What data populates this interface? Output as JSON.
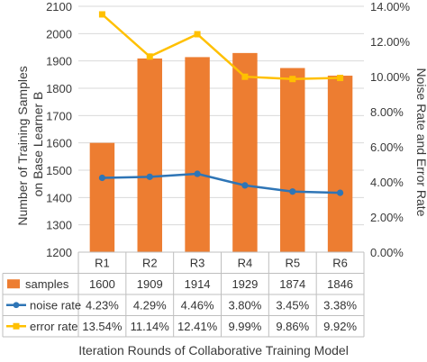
{
  "chart_data": {
    "type": "bar",
    "categories": [
      "R1",
      "R2",
      "R3",
      "R4",
      "R5",
      "R6"
    ],
    "series": [
      {
        "name": "samples",
        "kind": "bar",
        "axis": "left",
        "color": "#ED7D31",
        "values": [
          1600,
          1909,
          1914,
          1929,
          1874,
          1846
        ],
        "labels": [
          "1600",
          "1909",
          "1914",
          "1929",
          "1874",
          "1846"
        ]
      },
      {
        "name": "noise rate",
        "kind": "line",
        "axis": "right",
        "color": "#2E75B6",
        "values": [
          4.23,
          4.29,
          4.46,
          3.8,
          3.45,
          3.38
        ],
        "labels": [
          "4.23%",
          "4.29%",
          "4.46%",
          "3.80%",
          "3.45%",
          "3.38%"
        ]
      },
      {
        "name": "error rate",
        "kind": "line",
        "axis": "right",
        "color": "#FFC000",
        "values": [
          13.54,
          11.14,
          12.41,
          9.99,
          9.86,
          9.92
        ],
        "labels": [
          "13.54%",
          "11.14%",
          "12.41%",
          "9.99%",
          "9.86%",
          "9.92%"
        ]
      }
    ],
    "ylabel": [
      "Number of Training Samples",
      "on Base Learner B"
    ],
    "y2label": "Noise Rate and Error Rate",
    "xlabel": "Iteration Rounds of Collaborative Training Model",
    "ylim": [
      1200,
      2100
    ],
    "y2lim": [
      0,
      14
    ],
    "yticks": [
      "1200",
      "1300",
      "1400",
      "1500",
      "1600",
      "1700",
      "1800",
      "1900",
      "2000",
      "2100"
    ],
    "y2ticks": [
      "0.00%",
      "2.00%",
      "4.00%",
      "6.00%",
      "8.00%",
      "10.00%",
      "12.00%",
      "14.00%"
    ],
    "grid": true,
    "legend": "data-table"
  }
}
